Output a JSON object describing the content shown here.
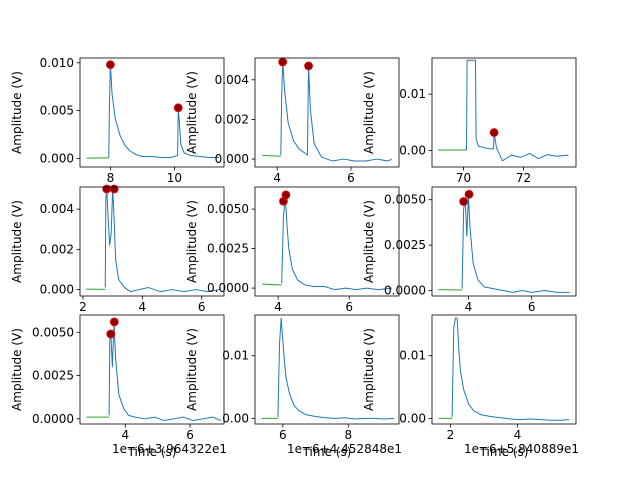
{
  "colors": {
    "signal": "#1f77b4",
    "baseline": "#2ca02c",
    "peak_fill": "#8b0000",
    "peak_edge": "#ff0000",
    "axis": "#000000",
    "background": "#ffffff"
  },
  "chart_data": [
    {
      "type": "line",
      "ylabel": "Amplitude (V)",
      "xlim": [
        7.05,
        11.55
      ],
      "ylim": [
        -0.0009,
        0.0105
      ],
      "xticks": [
        8,
        10
      ],
      "xtick_labels": [
        "8",
        "10"
      ],
      "yticks": [
        0.0,
        0.005,
        0.01
      ],
      "ytick_labels": [
        "0.000",
        "0.005",
        "0.010"
      ],
      "baseline": {
        "x": [
          7.25,
          7.95
        ],
        "y": [
          3e-05,
          5e-05
        ]
      },
      "series": [
        {
          "x": [
            7.95,
            7.97,
            8.0,
            8.05,
            8.15,
            8.3,
            8.45,
            8.6,
            8.8,
            9.0,
            9.3,
            9.6,
            9.9,
            10.1,
            10.12,
            10.15,
            10.2,
            10.3,
            10.5,
            10.8,
            11.1,
            11.4
          ],
          "y": [
            0.0001,
            0.0055,
            0.0099,
            0.0068,
            0.0042,
            0.0024,
            0.0014,
            0.0008,
            0.0004,
            0.0002,
            0.0002,
            0.0001,
            0.0001,
            0.0003,
            0.0053,
            0.004,
            0.0015,
            0.0006,
            0.0003,
            0.0002,
            0.0001,
            0.0001
          ]
        }
      ],
      "peaks": {
        "x": [
          8.0,
          10.12
        ],
        "y": [
          0.0098,
          0.0053
        ]
      },
      "xaxis_note": ""
    },
    {
      "type": "line",
      "ylabel": "Amplitude (V)",
      "xlim": [
        3.4,
        7.3
      ],
      "ylim": [
        -0.0004,
        0.0051
      ],
      "xticks": [
        4,
        6
      ],
      "xtick_labels": [
        "4",
        "6"
      ],
      "yticks": [
        0.0,
        0.002,
        0.004
      ],
      "ytick_labels": [
        "0.000",
        "0.002",
        "0.004"
      ],
      "baseline": {
        "x": [
          3.6,
          4.1
        ],
        "y": [
          0.00018,
          0.00015
        ]
      },
      "series": [
        {
          "x": [
            4.1,
            4.12,
            4.15,
            4.2,
            4.3,
            4.45,
            4.6,
            4.75,
            4.82,
            4.85,
            4.9,
            5.0,
            5.2,
            5.5,
            5.8,
            6.1,
            6.4,
            6.7,
            7.0,
            7.1
          ],
          "y": [
            0.0002,
            0.003,
            0.0049,
            0.0035,
            0.0018,
            0.0009,
            0.0005,
            0.0003,
            0.0002,
            0.0047,
            0.0025,
            0.0008,
            0.0001,
            -0.0001,
            0.0,
            -0.0001,
            -0.0001,
            0.0,
            -0.0001,
            0.0
          ]
        }
      ],
      "peaks": {
        "x": [
          4.15,
          4.85
        ],
        "y": [
          0.0049,
          0.0047
        ]
      },
      "xaxis_note": ""
    },
    {
      "type": "line",
      "ylabel": "Amplitude (V)",
      "xlim": [
        68.95,
        73.75
      ],
      "ylim": [
        -0.0029,
        0.0164
      ],
      "xticks": [
        70,
        72
      ],
      "xtick_labels": [
        "70",
        "72"
      ],
      "yticks": [
        0.0,
        0.01
      ],
      "ytick_labels": [
        "0.00",
        "0.01"
      ],
      "baseline": {
        "x": [
          69.15,
          70.1
        ],
        "y": [
          0.0001,
          0.0001
        ]
      },
      "series": [
        {
          "x": [
            70.1,
            70.12,
            70.4,
            70.42,
            70.5,
            70.7,
            70.9,
            71.0,
            71.02,
            71.1,
            71.3,
            71.6,
            71.9,
            72.2,
            72.5,
            72.8,
            73.1,
            73.5
          ],
          "y": [
            0.0001,
            0.016,
            0.016,
            0.002,
            0.0008,
            0.0005,
            0.0003,
            0.0003,
            0.0032,
            0.0005,
            -0.0018,
            -0.0008,
            -0.0012,
            -0.0005,
            -0.0014,
            -0.0007,
            -0.001,
            -0.0008
          ]
        }
      ],
      "peaks": {
        "x": [
          71.02
        ],
        "y": [
          0.0032
        ]
      },
      "xaxis_note": ""
    },
    {
      "type": "line",
      "ylabel": "Amplitude (V)",
      "xlim": [
        1.9,
        6.75
      ],
      "ylim": [
        -0.00032,
        0.0051
      ],
      "xticks": [
        2,
        4,
        6
      ],
      "xtick_labels": [
        "2",
        "4",
        "6"
      ],
      "yticks": [
        0.0,
        0.002,
        0.004
      ],
      "ytick_labels": [
        "0.000",
        "0.002",
        "0.004"
      ],
      "baseline": {
        "x": [
          2.1,
          2.75
        ],
        "y": [
          2e-05,
          1e-05
        ]
      },
      "series": [
        {
          "x": [
            2.75,
            2.77,
            2.8,
            2.85,
            2.9,
            2.95,
            3.0,
            3.05,
            3.1,
            3.2,
            3.4,
            3.6,
            3.9,
            4.2,
            4.6,
            5.0,
            5.4,
            5.8,
            6.2,
            6.6
          ],
          "y": [
            0.0001,
            0.0045,
            0.005,
            0.0035,
            0.0022,
            0.0028,
            0.005,
            0.0035,
            0.0015,
            0.0005,
            0.0001,
            -0.0001,
            0.0,
            0.0001,
            -0.0001,
            0.0,
            -0.0001,
            0.0,
            -0.0001,
            0.0
          ]
        }
      ],
      "peaks": {
        "x": [
          2.8,
          3.05
        ],
        "y": [
          0.005,
          0.005
        ]
      },
      "xaxis_note": ""
    },
    {
      "type": "line",
      "ylabel": "Amplitude (V)",
      "xlim": [
        3.35,
        7.4
      ],
      "ylim": [
        -0.0005,
        0.0064
      ],
      "xticks": [
        4,
        6
      ],
      "xtick_labels": [
        "4",
        "6"
      ],
      "yticks": [
        0.0,
        0.0025,
        0.005
      ],
      "ytick_labels": [
        "0.0000",
        "0.0025",
        "0.0050"
      ],
      "baseline": {
        "x": [
          3.55,
          4.1
        ],
        "y": [
          0.00025,
          0.0002
        ]
      },
      "series": [
        {
          "x": [
            4.1,
            4.15,
            4.2,
            4.25,
            4.3,
            4.4,
            4.55,
            4.75,
            5.0,
            5.3,
            5.6,
            5.9,
            6.2,
            6.5,
            6.8,
            7.2
          ],
          "y": [
            0.0003,
            0.0045,
            0.0058,
            0.004,
            0.0025,
            0.0012,
            0.0005,
            0.0002,
            0.0001,
            0.0001,
            -0.0001,
            0.0,
            -0.0001,
            0.0,
            -0.0001,
            0.0
          ]
        }
      ],
      "peaks": {
        "x": [
          4.15,
          4.22
        ],
        "y": [
          0.0055,
          0.0059
        ]
      },
      "xaxis_note": ""
    },
    {
      "type": "line",
      "ylabel": "Amplitude (V)",
      "xlim": [
        2.85,
        7.4
      ],
      "ylim": [
        -0.0003,
        0.0057
      ],
      "xticks": [
        4,
        6
      ],
      "xtick_labels": [
        "4",
        "6"
      ],
      "yticks": [
        0.0,
        0.0025,
        0.005
      ],
      "ytick_labels": [
        "0.0000",
        "0.0025",
        "0.0050"
      ],
      "baseline": {
        "x": [
          3.05,
          3.8
        ],
        "y": [
          5e-05,
          3e-05
        ]
      },
      "series": [
        {
          "x": [
            3.8,
            3.85,
            3.9,
            3.95,
            4.0,
            4.05,
            4.15,
            4.3,
            4.5,
            4.8,
            5.1,
            5.4,
            5.7,
            6.0,
            6.4,
            6.8,
            7.2
          ],
          "y": [
            0.0001,
            0.0045,
            0.005,
            0.003,
            0.0052,
            0.0035,
            0.0015,
            0.0006,
            0.0002,
            0.0001,
            0.0,
            -0.0001,
            0.0,
            -0.0001,
            0.0,
            -0.0001,
            -0.0001
          ]
        }
      ],
      "peaks": {
        "x": [
          3.85,
          4.02
        ],
        "y": [
          0.0049,
          0.0053
        ]
      },
      "xaxis_note": ""
    },
    {
      "type": "line",
      "ylabel": "Amplitude (V)",
      "xlabel": "Time (s)",
      "xlim": [
        2.6,
        7.05
      ],
      "ylim": [
        -0.0003,
        0.006
      ],
      "xticks": [
        4,
        6
      ],
      "xtick_labels": [
        "4",
        "6"
      ],
      "yticks": [
        0.0,
        0.0025,
        0.005
      ],
      "ytick_labels": [
        "0.0000",
        "0.0025",
        "0.0050"
      ],
      "baseline": {
        "x": [
          2.8,
          3.5
        ],
        "y": [
          0.0001,
          0.0001
        ]
      },
      "series": [
        {
          "x": [
            3.5,
            3.52,
            3.55,
            3.6,
            3.65,
            3.7,
            3.8,
            3.95,
            4.1,
            4.3,
            4.6,
            4.9,
            5.2,
            5.5,
            5.8,
            6.1,
            6.4,
            6.7,
            6.95
          ],
          "y": [
            0.0002,
            0.0045,
            0.005,
            0.003,
            0.0056,
            0.0035,
            0.0014,
            0.0006,
            0.0002,
            0.0001,
            0.0,
            0.0001,
            -0.0001,
            0.0,
            0.0001,
            -0.0001,
            0.0,
            0.0001,
            -0.0001
          ]
        }
      ],
      "peaks": {
        "x": [
          3.55,
          3.66
        ],
        "y": [
          0.0049,
          0.0056
        ]
      },
      "xaxis_note": "1e−6+3.964322e1"
    },
    {
      "type": "line",
      "ylabel": "Amplitude (V)",
      "xlabel": "Time (s)",
      "xlim": [
        5.15,
        9.55
      ],
      "ylim": [
        -0.0009,
        0.0165
      ],
      "xticks": [
        6,
        8
      ],
      "xtick_labels": [
        "6",
        "8"
      ],
      "yticks": [
        0.0,
        0.01
      ],
      "ytick_labels": [
        "0.00",
        "0.01"
      ],
      "baseline": {
        "x": [
          5.35,
          5.85
        ],
        "y": [
          0.0,
          0.0
        ]
      },
      "series": [
        {
          "x": [
            5.85,
            5.9,
            5.95,
            6.0,
            6.05,
            6.1,
            6.2,
            6.35,
            6.5,
            6.7,
            7.0,
            7.3,
            7.6,
            7.9,
            8.2,
            8.5,
            8.8,
            9.1,
            9.4
          ],
          "y": [
            0.0002,
            0.012,
            0.016,
            0.0125,
            0.009,
            0.0065,
            0.004,
            0.002,
            0.0012,
            0.0006,
            0.0003,
            0.0001,
            0.0,
            0.0001,
            -0.0001,
            0.0,
            0.0,
            -0.0001,
            0.0
          ]
        }
      ],
      "peaks": {
        "x": [],
        "y": []
      },
      "xaxis_note": "1e−6+4.452848e1"
    },
    {
      "type": "line",
      "ylabel": "Amplitude (V)",
      "xlabel": "Time (s)",
      "xlim": [
        1.45,
        5.75
      ],
      "ylim": [
        -0.0009,
        0.0165
      ],
      "xticks": [
        2,
        4
      ],
      "xtick_labels": [
        "2",
        "4"
      ],
      "yticks": [
        0.0,
        0.01
      ],
      "ytick_labels": [
        "0.00",
        "0.01"
      ],
      "baseline": {
        "x": [
          1.65,
          2.05
        ],
        "y": [
          0.0,
          0.0
        ]
      },
      "series": [
        {
          "x": [
            2.05,
            2.1,
            2.15,
            2.2,
            2.25,
            2.3,
            2.4,
            2.55,
            2.7,
            2.9,
            3.2,
            3.5,
            3.8,
            4.1,
            4.4,
            4.7,
            5.0,
            5.3,
            5.55
          ],
          "y": [
            0.0002,
            0.0145,
            0.016,
            0.016,
            0.011,
            0.0075,
            0.0045,
            0.0022,
            0.0012,
            0.0006,
            0.0003,
            0.0001,
            -0.0001,
            -0.0002,
            -0.0001,
            -0.0002,
            -0.0003,
            -0.0003,
            -0.0002
          ]
        }
      ],
      "peaks": {
        "x": [],
        "y": []
      },
      "xaxis_note": "1e−6+5.840889e1"
    }
  ]
}
